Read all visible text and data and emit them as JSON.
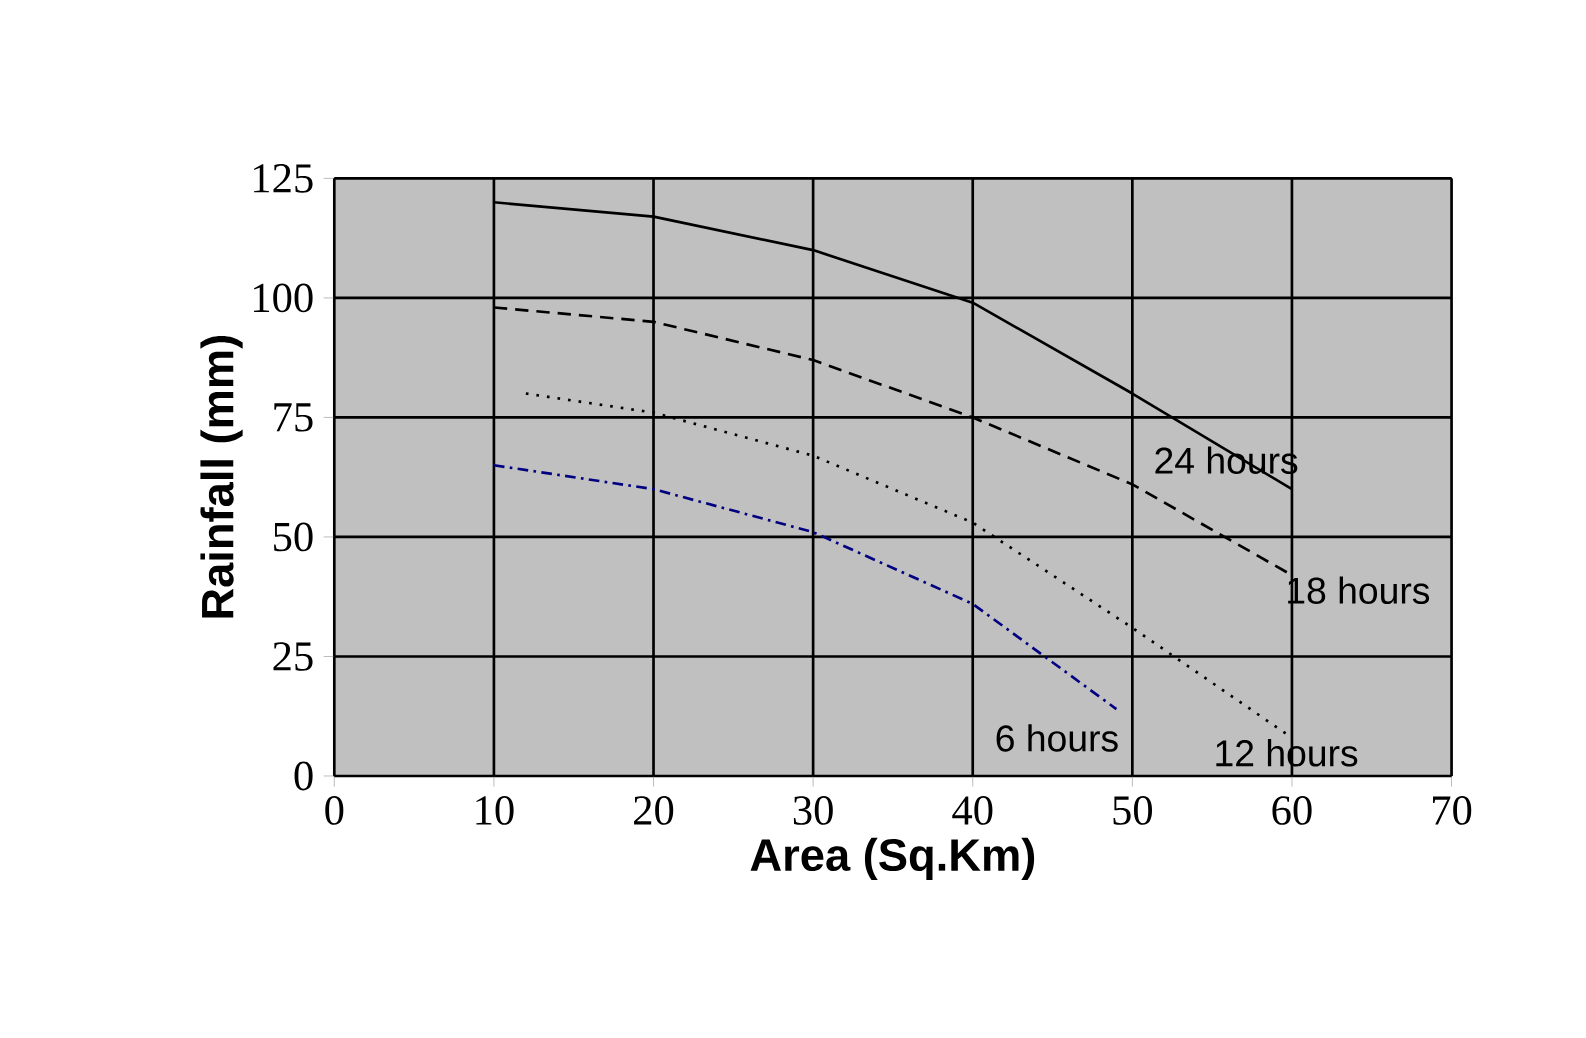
{
  "chart_data": {
    "type": "line",
    "xlabel": "Area (Sq.Km)",
    "ylabel": "Rainfall (mm)",
    "xlim": [
      0,
      70
    ],
    "xticks": [
      0,
      10,
      20,
      30,
      40,
      50,
      60,
      70
    ],
    "ylim": [
      0,
      125
    ],
    "yticks": [
      0,
      25,
      50,
      75,
      100,
      125
    ],
    "grid": true,
    "marker": "none",
    "series": [
      {
        "name": "24 hours",
        "color": "#000000",
        "line_style": "solid",
        "x": [
          10,
          20,
          30,
          40,
          50,
          60
        ],
        "values": [
          120,
          117,
          110,
          99,
          80,
          60
        ]
      },
      {
        "name": "18 hours",
        "color": "#000000",
        "line_style": "dashed",
        "x": [
          10,
          20,
          30,
          40,
          50,
          60
        ],
        "values": [
          98,
          95,
          87,
          75,
          61,
          42
        ]
      },
      {
        "name": "12 hours",
        "color": "#000000",
        "line_style": "dotted",
        "x": [
          12,
          20,
          30,
          40,
          50,
          60
        ],
        "values": [
          80,
          76,
          67,
          53,
          31,
          8
        ]
      },
      {
        "name": "6 hours",
        "color": "#000080",
        "line_style": "dashdot",
        "x": [
          10,
          20,
          30,
          40,
          49
        ],
        "values": [
          65,
          60,
          51,
          36,
          14
        ]
      }
    ]
  }
}
